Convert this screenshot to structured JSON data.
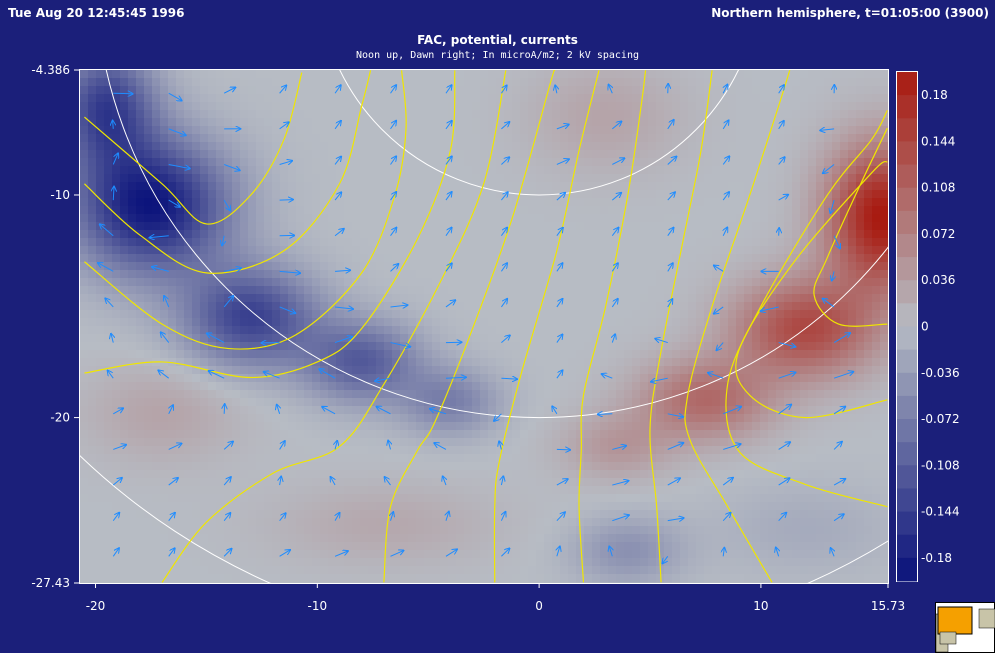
{
  "header": {
    "left": "Tue Aug 20 12:45:45 1996",
    "right": "Northern hemisphere, t=01:05:00 (3900)"
  },
  "chart_data": {
    "type": "heatmap",
    "title": "FAC, potential, currents",
    "subtitle": "Noon up, Dawn right; In microA/m2; 2 kV spacing",
    "xlim": [
      -20.7,
      15.73
    ],
    "ylim": [
      -27.43,
      -4.386
    ],
    "x_ticks": [
      "-20",
      "-10",
      "0",
      "10",
      "15.73"
    ],
    "y_ticks": [
      "-4.386",
      "-10",
      "-20",
      "-27.43"
    ],
    "colorbar": {
      "range": [
        -0.198,
        0.198
      ],
      "ticks": [
        "0.18",
        "0.144",
        "0.108",
        "0.072",
        "0.036",
        "0",
        "-0.036",
        "-0.072",
        "-0.108",
        "-0.144",
        "-0.18"
      ],
      "low_color": "#08107a",
      "mid_color": "#b7bcc4",
      "high_color": "#a81a10"
    },
    "field_sources": [
      {
        "x": -17.5,
        "y": -10.5,
        "amp": -0.19,
        "sx": 3.5,
        "sy": 3.0
      },
      {
        "x": -13,
        "y": -15.5,
        "amp": -0.14,
        "sx": 3.0,
        "sy": 2.2
      },
      {
        "x": -8,
        "y": -17.5,
        "amp": -0.11,
        "sx": 2.6,
        "sy": 1.8
      },
      {
        "x": -4,
        "y": -19.3,
        "amp": -0.07,
        "sx": 2.2,
        "sy": 1.5
      },
      {
        "x": -19.5,
        "y": -6,
        "amp": -0.14,
        "sx": 2.2,
        "sy": 2.6
      },
      {
        "x": -17,
        "y": -19.8,
        "amp": 0.03,
        "sx": 3.5,
        "sy": 2.2
      },
      {
        "x": -7,
        "y": -24.8,
        "amp": 0.025,
        "sx": 5.0,
        "sy": 1.8
      },
      {
        "x": 15.5,
        "y": -11,
        "amp": 0.2,
        "sx": 2.5,
        "sy": 3.2
      },
      {
        "x": 12,
        "y": -16,
        "amp": 0.14,
        "sx": 3.2,
        "sy": 2.2
      },
      {
        "x": 7.5,
        "y": -19.2,
        "amp": 0.1,
        "sx": 3.0,
        "sy": 1.8
      },
      {
        "x": 3.5,
        "y": -21.3,
        "amp": 0.045,
        "sx": 2.5,
        "sy": 1.5
      },
      {
        "x": 3,
        "y": -6.5,
        "amp": 0.03,
        "sx": 3.5,
        "sy": 2.5
      },
      {
        "x": 4,
        "y": -26,
        "amp": -0.05,
        "sx": 2.5,
        "sy": 1.5
      },
      {
        "x": 12,
        "y": -25,
        "amp": -0.02,
        "sx": 4.0,
        "sy": 2.0
      }
    ],
    "potential_contours": [
      [
        [
          -20.5,
          -6.5
        ],
        [
          -17,
          -9.5
        ],
        [
          -15,
          -11.3
        ],
        [
          -13,
          -10
        ],
        [
          -11.5,
          -7.5
        ],
        [
          -10.7,
          -4.5
        ]
      ],
      [
        [
          -20.5,
          -9.5
        ],
        [
          -18,
          -11.8
        ],
        [
          -15,
          -13.5
        ],
        [
          -11.5,
          -12.5
        ],
        [
          -9,
          -9.5
        ],
        [
          -8,
          -6
        ],
        [
          -7.6,
          -4.4
        ]
      ],
      [
        [
          -20.5,
          -13
        ],
        [
          -17,
          -15.8
        ],
        [
          -14,
          -16.9
        ],
        [
          -11,
          -16.3
        ],
        [
          -8,
          -13.5
        ],
        [
          -6.5,
          -10
        ],
        [
          -6,
          -7
        ],
        [
          -6.2,
          -4.4
        ]
      ],
      [
        [
          -20.5,
          -18
        ],
        [
          -17,
          -17.5
        ],
        [
          -13,
          -18.2
        ],
        [
          -10,
          -17.5
        ],
        [
          -8,
          -16
        ],
        [
          -5.5,
          -12
        ],
        [
          -4,
          -8
        ],
        [
          -3.8,
          -4.4
        ]
      ],
      [
        [
          -17,
          -27.4
        ],
        [
          -15,
          -24.7
        ],
        [
          -12,
          -22.5
        ],
        [
          -9,
          -21.3
        ],
        [
          -7,
          -18.5
        ],
        [
          -4.5,
          -14
        ],
        [
          -2.5,
          -9.5
        ],
        [
          -1.5,
          -4.4
        ]
      ],
      [
        [
          -7,
          -27.4
        ],
        [
          -6.7,
          -24
        ],
        [
          -5.5,
          -21.5
        ],
        [
          -4.7,
          -20.2
        ],
        [
          -3,
          -16
        ],
        [
          -1.2,
          -11
        ],
        [
          0.5,
          -5
        ],
        [
          0.7,
          -4.4
        ]
      ],
      [
        [
          -2,
          -27.4
        ],
        [
          -2,
          -24
        ],
        [
          -1.8,
          -22
        ],
        [
          -0.8,
          -18
        ],
        [
          0.8,
          -12.5
        ],
        [
          1.8,
          -8
        ],
        [
          2.7,
          -4.4
        ]
      ],
      [
        [
          2,
          -27.4
        ],
        [
          1.8,
          -24
        ],
        [
          1.9,
          -21.5
        ],
        [
          2,
          -19
        ],
        [
          3,
          -15
        ],
        [
          4,
          -10
        ],
        [
          4.6,
          -6
        ],
        [
          4.8,
          -4.4
        ]
      ],
      [
        [
          5.5,
          -27.4
        ],
        [
          5.3,
          -24
        ],
        [
          5,
          -20.5
        ],
        [
          5.5,
          -17
        ],
        [
          6.5,
          -12
        ],
        [
          7.3,
          -8
        ],
        [
          7.8,
          -4.4
        ]
      ],
      [
        [
          10.5,
          -27.4
        ],
        [
          8.5,
          -24
        ],
        [
          6.8,
          -21
        ],
        [
          6.7,
          -19
        ],
        [
          7.8,
          -15
        ],
        [
          9.5,
          -10
        ],
        [
          10.8,
          -6
        ],
        [
          11.3,
          -4.4
        ]
      ],
      [
        [
          15.7,
          -24
        ],
        [
          12,
          -23
        ],
        [
          9,
          -21.5
        ],
        [
          8.5,
          -18.5
        ],
        [
          10,
          -15
        ],
        [
          13,
          -10
        ],
        [
          15,
          -7.5
        ],
        [
          15.7,
          -6.2
        ]
      ],
      [
        [
          15.7,
          -19.2
        ],
        [
          12,
          -20
        ],
        [
          9.5,
          -19
        ],
        [
          9,
          -17
        ],
        [
          11.5,
          -13
        ],
        [
          15,
          -9
        ],
        [
          15.7,
          -8.5
        ]
      ],
      [
        [
          15.7,
          -15.8
        ],
        [
          13.5,
          -15.8
        ],
        [
          12.4,
          -14.5
        ],
        [
          13,
          -12.8
        ],
        [
          14.5,
          -9.5
        ],
        [
          15.7,
          -7
        ]
      ]
    ],
    "grid_circles": [
      {
        "cx": 0,
        "cy": 0,
        "r": 10
      },
      {
        "cx": 0,
        "cy": 0,
        "r": 20
      },
      {
        "cx": 0,
        "cy": 0,
        "r": 30
      }
    ],
    "current_arrows": {
      "x_step": 2.5,
      "y_step": 1.6,
      "color": "#1e8cff"
    }
  }
}
